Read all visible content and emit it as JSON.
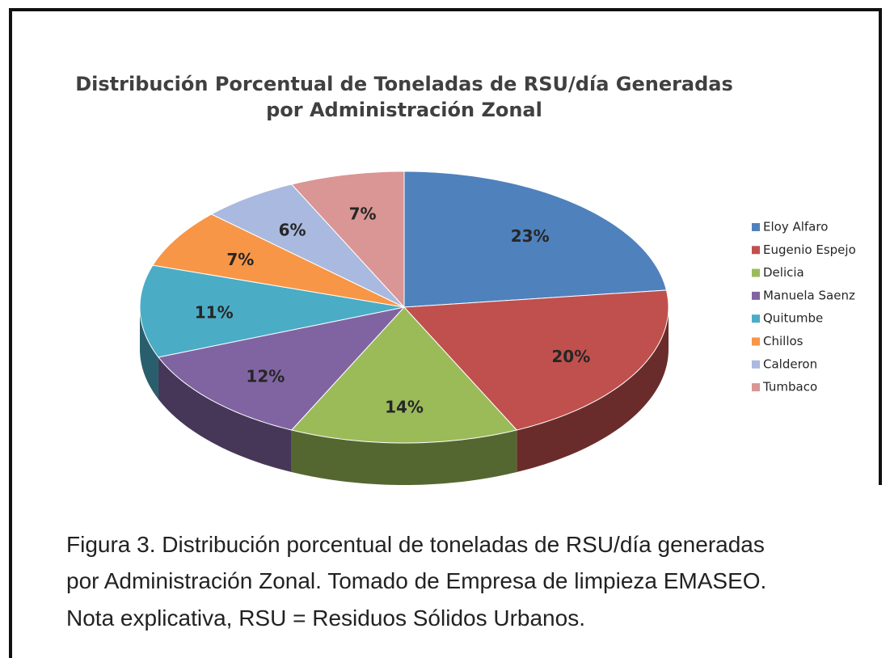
{
  "chart_data": {
    "type": "pie",
    "title": [
      "Distribución Porcentual de Toneladas de RSU/día Generadas",
      "por Administración Zonal"
    ],
    "categories": [
      "Eloy Alfaro",
      "Eugenio Espejo",
      "Delicia",
      "Manuela Saenz",
      "Quitumbe",
      "Chillos",
      "Calderon",
      "Tumbaco"
    ],
    "values": [
      23,
      20,
      14,
      12,
      11,
      7,
      6,
      7
    ],
    "value_labels": [
      "23%",
      "20%",
      "14%",
      "12%",
      "11%",
      "7%",
      "6%",
      "7%"
    ],
    "colors": [
      "#4f81bd",
      "#c0504d",
      "#9bbb59",
      "#8064a2",
      "#4bacc6",
      "#f79646",
      "#a9b9df",
      "#d99694"
    ],
    "legend": "right"
  },
  "caption": [
    "Figura 3. Distribución porcentual de toneladas de RSU/día generadas",
    "por Administración Zonal. Tomado de Empresa de limpieza EMASEO.",
    "Nota explicativa, RSU = Residuos Sólidos Urbanos."
  ]
}
